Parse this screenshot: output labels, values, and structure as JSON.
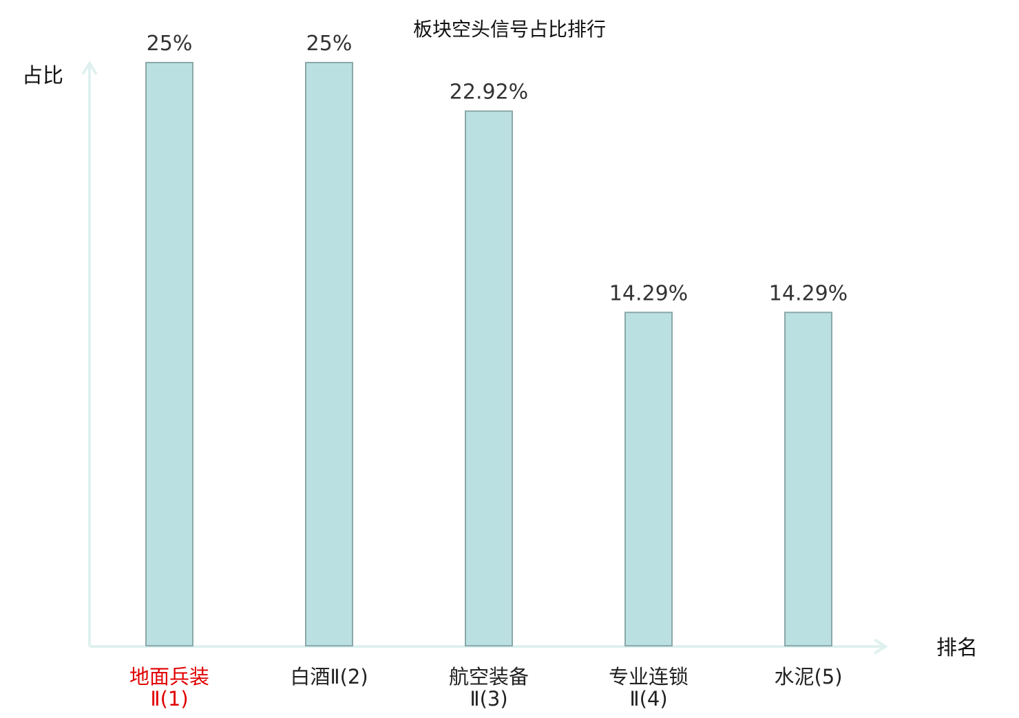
{
  "chart_data": {
    "type": "bar",
    "title": "板块空头信号占比排行",
    "ylabel": "占比",
    "xlabel": "排名",
    "categories": [
      [
        "地面兵装",
        "Ⅱ(1)"
      ],
      [
        "白酒Ⅱ(2)"
      ],
      [
        "航空装备",
        "Ⅱ(3)"
      ],
      [
        "专业连锁",
        "Ⅱ(4)"
      ],
      [
        "水泥(5)"
      ]
    ],
    "values": [
      25,
      25,
      22.92,
      14.29,
      14.29
    ],
    "value_labels": [
      "25%",
      "25%",
      "22.92%",
      "14.29%",
      "14.29%"
    ],
    "ylim": [
      0,
      25
    ],
    "grid": false,
    "highlight_index": 0,
    "colors": {
      "bar_fill": "#bbe0e1",
      "bar_stroke": "#8aa7a8",
      "axis": "#dff1ef",
      "highlight_label": "#e00000",
      "label": "#222222",
      "value_label": "#333333"
    }
  }
}
